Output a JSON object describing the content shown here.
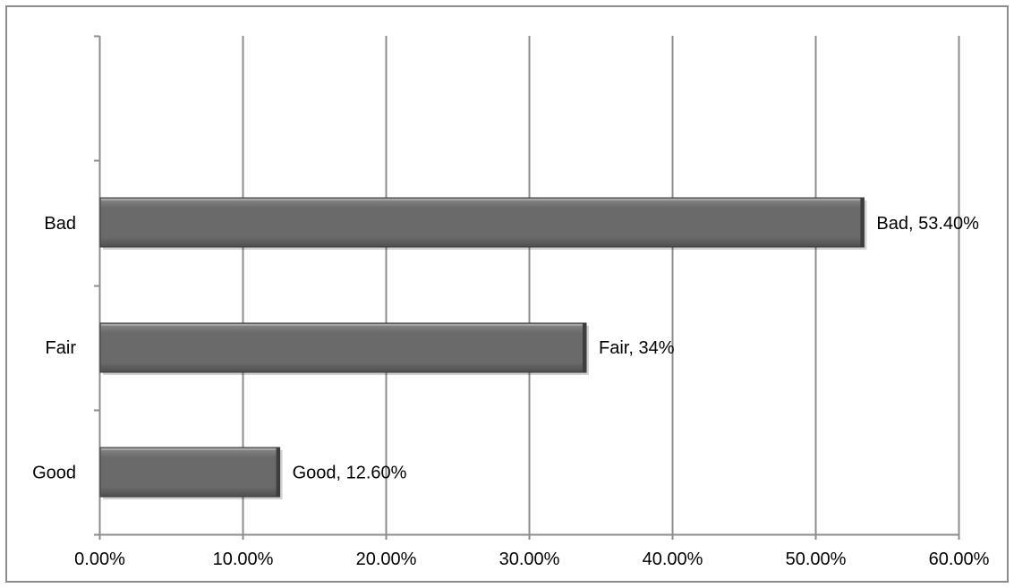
{
  "chart_data": {
    "type": "bar",
    "orientation": "horizontal",
    "categories": [
      "Good",
      "Fair",
      "Bad"
    ],
    "values": [
      12.6,
      34,
      53.4
    ],
    "data_labels": [
      "Good, 12.60%",
      "Fair, 34%",
      "Bad, 53.40%"
    ],
    "x_tick_labels": [
      "0.00%",
      "10.00%",
      "20.00%",
      "30.00%",
      "40.00%",
      "50.00%",
      "60.00%"
    ],
    "xlim": [
      0,
      60
    ],
    "x_tick_step": 10,
    "grid": "vertical major gridlines",
    "legend": "none",
    "title": "",
    "xlabel": "",
    "ylabel": "",
    "colors": {
      "bar_top": "#8a8a8a",
      "bar_mid": "#6a6a6a",
      "bar_bottom": "#4e4e4e",
      "bar_edge": "#3a3a3a",
      "gridline": "#8c8c8c",
      "axis": "#8c8c8c",
      "frame": "#8c8c8c"
    }
  }
}
